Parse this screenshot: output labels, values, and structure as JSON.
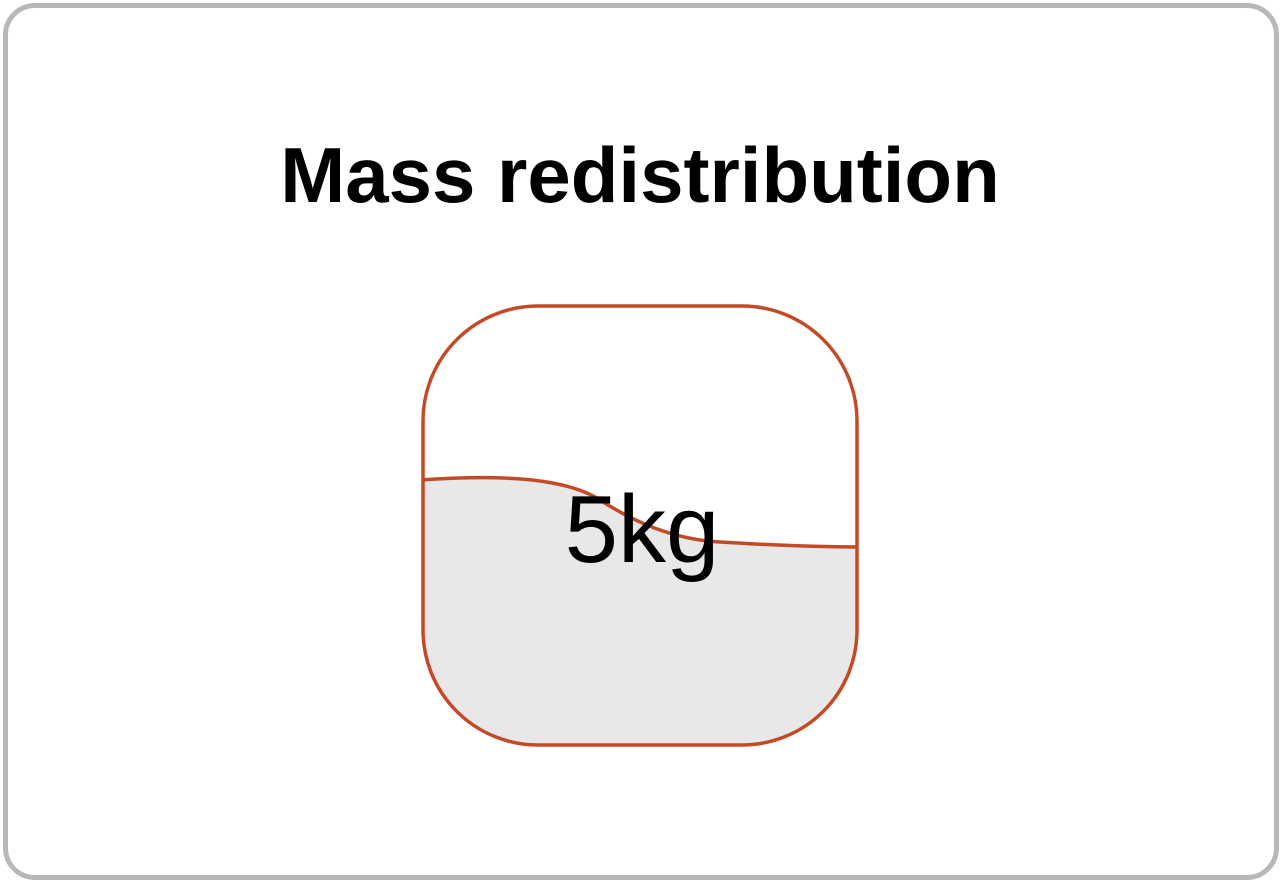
{
  "title": "Mass redistribution",
  "container": {
    "mass_label": "5kg",
    "fill_level": 0.5,
    "colors": {
      "outline": "#c44a26",
      "fill": "#e9e8e8",
      "frame": "#b8b8b8"
    }
  }
}
